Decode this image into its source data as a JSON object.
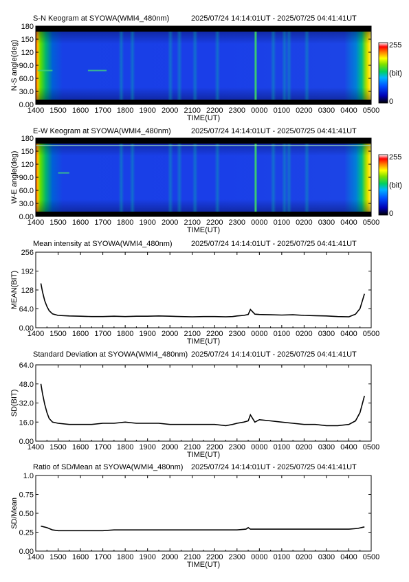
{
  "chart_data": [
    {
      "type": "heatmap",
      "title": "S-N Keogram at SYOWA(WMI4_480nm)",
      "subtitle": "2025/07/24 14:14:01UT - 2025/07/25 04:41:41UT",
      "xlabel": "TIME(UT)",
      "ylabel": "N-S angle(deg)",
      "xticks": [
        "1400",
        "1500",
        "1600",
        "1700",
        "1800",
        "1900",
        "2000",
        "2100",
        "2200",
        "2300",
        "0000",
        "0100",
        "0200",
        "0300",
        "0400",
        "0500"
      ],
      "yticks": [
        "0.00",
        "30.0",
        "60.0",
        "90.0",
        "120",
        "150",
        "180"
      ],
      "ylim": [
        0,
        180
      ],
      "colorbar": {
        "max_label": "255",
        "unit_label": "(bit)",
        "min_label": "0"
      },
      "features": {
        "bright_streak_time": "2350",
        "arc_segments": [
          {
            "x0": "1405",
            "x1": "1445",
            "y": 78
          },
          {
            "x0": "1620",
            "x1": "1710",
            "y": 78
          }
        ]
      }
    },
    {
      "type": "heatmap",
      "title": "E-W Keogram at SYOWA(WMI4_480nm)",
      "subtitle": "2025/07/24 14:14:01UT - 2025/07/25 04:41:41UT",
      "xlabel": "TIME(UT)",
      "ylabel": "W-E angle(deg)",
      "xticks": [
        "1400",
        "1500",
        "1600",
        "1700",
        "1800",
        "1900",
        "2000",
        "2100",
        "2200",
        "2300",
        "0000",
        "0100",
        "0200",
        "0300",
        "0400",
        "0500"
      ],
      "yticks": [
        "0.00",
        "30.0",
        "60.0",
        "90.0",
        "120",
        "150",
        "180"
      ],
      "ylim": [
        0,
        180
      ],
      "colorbar": {
        "max_label": "255",
        "unit_label": "(bit)",
        "min_label": "0"
      },
      "features": {
        "bright_streak_time": "2350",
        "horizontal_line_angle": 163,
        "arc_segments": [
          {
            "x0": "1500",
            "x1": "1530",
            "y": 100
          }
        ]
      }
    },
    {
      "type": "line",
      "title": "Mean intensity at SYOWA(WMI4_480nm)",
      "subtitle": "2025/07/24 14:14:01UT - 2025/07/25 04:41:41UT",
      "xlabel": "TIME(UT)",
      "ylabel": "MEAN(BIT)",
      "xticks": [
        "1400",
        "1500",
        "1600",
        "1700",
        "1800",
        "1900",
        "2000",
        "2100",
        "2200",
        "2300",
        "0000",
        "0100",
        "0200",
        "0300",
        "0400",
        "0500"
      ],
      "yticks": [
        "0.00",
        "64.0",
        "128",
        "192",
        "256"
      ],
      "ylim": [
        0,
        256
      ],
      "x": [
        14.23,
        14.3,
        14.4,
        14.5,
        14.6,
        14.75,
        15.0,
        15.5,
        16.0,
        16.5,
        17.0,
        17.5,
        18.0,
        18.5,
        19.0,
        19.5,
        20.0,
        20.5,
        21.0,
        21.5,
        22.0,
        22.5,
        22.8,
        23.0,
        23.3,
        23.5,
        23.6,
        23.8,
        24.0,
        24.5,
        25.0,
        25.5,
        26.0,
        26.5,
        27.0,
        27.5,
        28.0,
        28.3,
        28.5,
        28.6,
        28.7
      ],
      "y": [
        150,
        122,
        92,
        72,
        58,
        47,
        42,
        40,
        39,
        38,
        38,
        39,
        38,
        39,
        39,
        40,
        39,
        38,
        37,
        38,
        38,
        37,
        38,
        40,
        42,
        45,
        62,
        46,
        45,
        44,
        43,
        44,
        42,
        41,
        40,
        38,
        37,
        46,
        65,
        90,
        115
      ]
    },
    {
      "type": "line",
      "title": "Standard Deviation at SYOWA(WMI4_480nm)",
      "subtitle": "2025/07/24 14:14:01UT - 2025/07/25 04:41:41UT",
      "xlabel": "TIME(UT)",
      "ylabel": "SD(BIT)",
      "xticks": [
        "1400",
        "1500",
        "1600",
        "1700",
        "1800",
        "1900",
        "2000",
        "2100",
        "2200",
        "2300",
        "0000",
        "0100",
        "0200",
        "0300",
        "0400",
        "0500"
      ],
      "yticks": [
        "0.00",
        "16.0",
        "32.0",
        "48.0",
        "64.0"
      ],
      "ylim": [
        0,
        64
      ],
      "x": [
        14.23,
        14.3,
        14.4,
        14.5,
        14.6,
        14.75,
        15.0,
        15.5,
        16.0,
        16.5,
        17.0,
        17.5,
        18.0,
        18.5,
        19.0,
        19.5,
        20.0,
        20.5,
        21.0,
        21.5,
        22.0,
        22.5,
        22.8,
        23.0,
        23.3,
        23.5,
        23.6,
        23.8,
        24.0,
        24.5,
        25.0,
        25.5,
        26.0,
        26.5,
        27.0,
        27.5,
        28.0,
        28.3,
        28.5,
        28.6,
        28.7
      ],
      "y": [
        48,
        40,
        31,
        24,
        19,
        16,
        15,
        14,
        14,
        14,
        15,
        15,
        16,
        15,
        15,
        15,
        14,
        14,
        14,
        14,
        14,
        13,
        14,
        15,
        16,
        17,
        22,
        16,
        18,
        17,
        16,
        15,
        14,
        14,
        13,
        13,
        14,
        17,
        24,
        31,
        38
      ]
    },
    {
      "type": "line",
      "title": "Ratio of SD/Mean at SYOWA(WMI4_480nm)",
      "subtitle": "2025/07/24 14:14:01UT - 2025/07/25 04:41:41UT",
      "xlabel": "TIME(UT)",
      "ylabel": "SD/Mean",
      "xticks": [
        "1400",
        "1500",
        "1600",
        "1700",
        "1800",
        "1900",
        "2000",
        "2100",
        "2200",
        "2300",
        "0000",
        "0100",
        "0200",
        "0300",
        "0400",
        "0500"
      ],
      "yticks": [
        "0.00",
        "0.25",
        "0.50",
        "0.75",
        "1.0"
      ],
      "ylim": [
        0,
        1
      ],
      "x": [
        14.23,
        14.5,
        14.75,
        15.0,
        15.5,
        16.0,
        16.5,
        17.0,
        17.5,
        18.0,
        18.5,
        19.0,
        19.5,
        20.0,
        20.5,
        21.0,
        21.5,
        22.0,
        22.5,
        23.0,
        23.4,
        23.5,
        23.6,
        24.0,
        24.5,
        25.0,
        25.5,
        26.0,
        26.5,
        27.0,
        27.5,
        28.0,
        28.4,
        28.7
      ],
      "y": [
        0.33,
        0.31,
        0.28,
        0.27,
        0.27,
        0.27,
        0.27,
        0.27,
        0.28,
        0.28,
        0.28,
        0.28,
        0.28,
        0.28,
        0.28,
        0.28,
        0.28,
        0.28,
        0.28,
        0.28,
        0.29,
        0.31,
        0.29,
        0.29,
        0.29,
        0.29,
        0.29,
        0.29,
        0.29,
        0.29,
        0.29,
        0.29,
        0.3,
        0.32
      ]
    }
  ]
}
